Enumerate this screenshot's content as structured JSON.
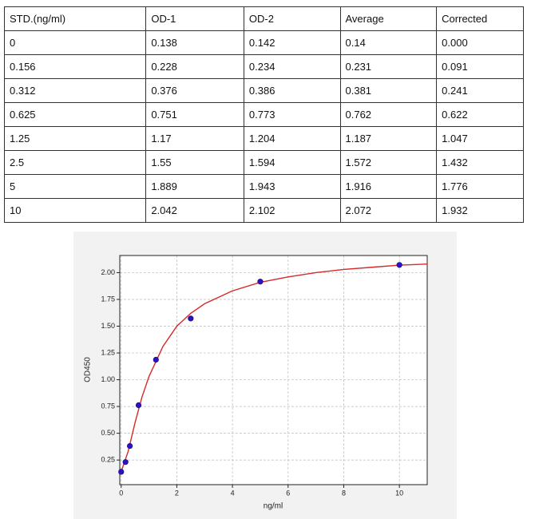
{
  "table": {
    "rows": [
      [
        "STD.(ng/ml)",
        "OD-1",
        "OD-2",
        "Average",
        "Corrected"
      ],
      [
        "0",
        "0.138",
        "0.142",
        "0.14",
        "0.000"
      ],
      [
        "0.156",
        "0.228",
        "0.234",
        "0.231",
        "0.091"
      ],
      [
        "0.312",
        "0.376",
        "0.386",
        "0.381",
        "0.241"
      ],
      [
        "0.625",
        "0.751",
        "0.773",
        "0.762",
        "0.622"
      ],
      [
        "1.25",
        "1.17",
        "1.204",
        "1.187",
        "1.047"
      ],
      [
        "2.5",
        "1.55",
        "1.594",
        "1.572",
        "1.432"
      ],
      [
        "5",
        "1.889",
        "1.943",
        "1.916",
        "1.776"
      ],
      [
        "10",
        "2.042",
        "2.102",
        "2.072",
        "1.932"
      ]
    ]
  },
  "chart_data": {
    "type": "scatter",
    "x_label": "ng/ml",
    "y_label": "OD450",
    "x": [
      0,
      0.156,
      0.312,
      0.625,
      1.25,
      2.5,
      5,
      10
    ],
    "values": [
      0.14,
      0.231,
      0.381,
      0.762,
      1.187,
      1.572,
      1.916,
      2.072
    ],
    "color": "#2a12c8",
    "fit": {
      "color": "#d42a2a",
      "x": [
        0,
        0.25,
        0.5,
        0.75,
        1,
        1.5,
        2,
        2.5,
        3,
        4,
        5,
        6,
        7,
        8,
        9,
        10,
        11
      ],
      "values": [
        0.14,
        0.33,
        0.6,
        0.84,
        1.03,
        1.31,
        1.5,
        1.62,
        1.71,
        1.83,
        1.91,
        1.96,
        2.0,
        2.03,
        2.05,
        2.07,
        2.08
      ]
    },
    "xlim": [
      -0.05,
      11
    ],
    "ylim": [
      0.02,
      2.16
    ],
    "xticks": [
      0,
      2,
      4,
      6,
      8,
      10
    ],
    "yticks": [
      0.25,
      {
        "value": 0.5,
        "label": "0.50"
      },
      0.75,
      {
        "value": 1,
        "label": "1.00"
      },
      1.25,
      {
        "value": 1.5,
        "label": "1.50"
      },
      1.75,
      {
        "value": 2,
        "label": "2.00"
      }
    ],
    "grid": true
  }
}
